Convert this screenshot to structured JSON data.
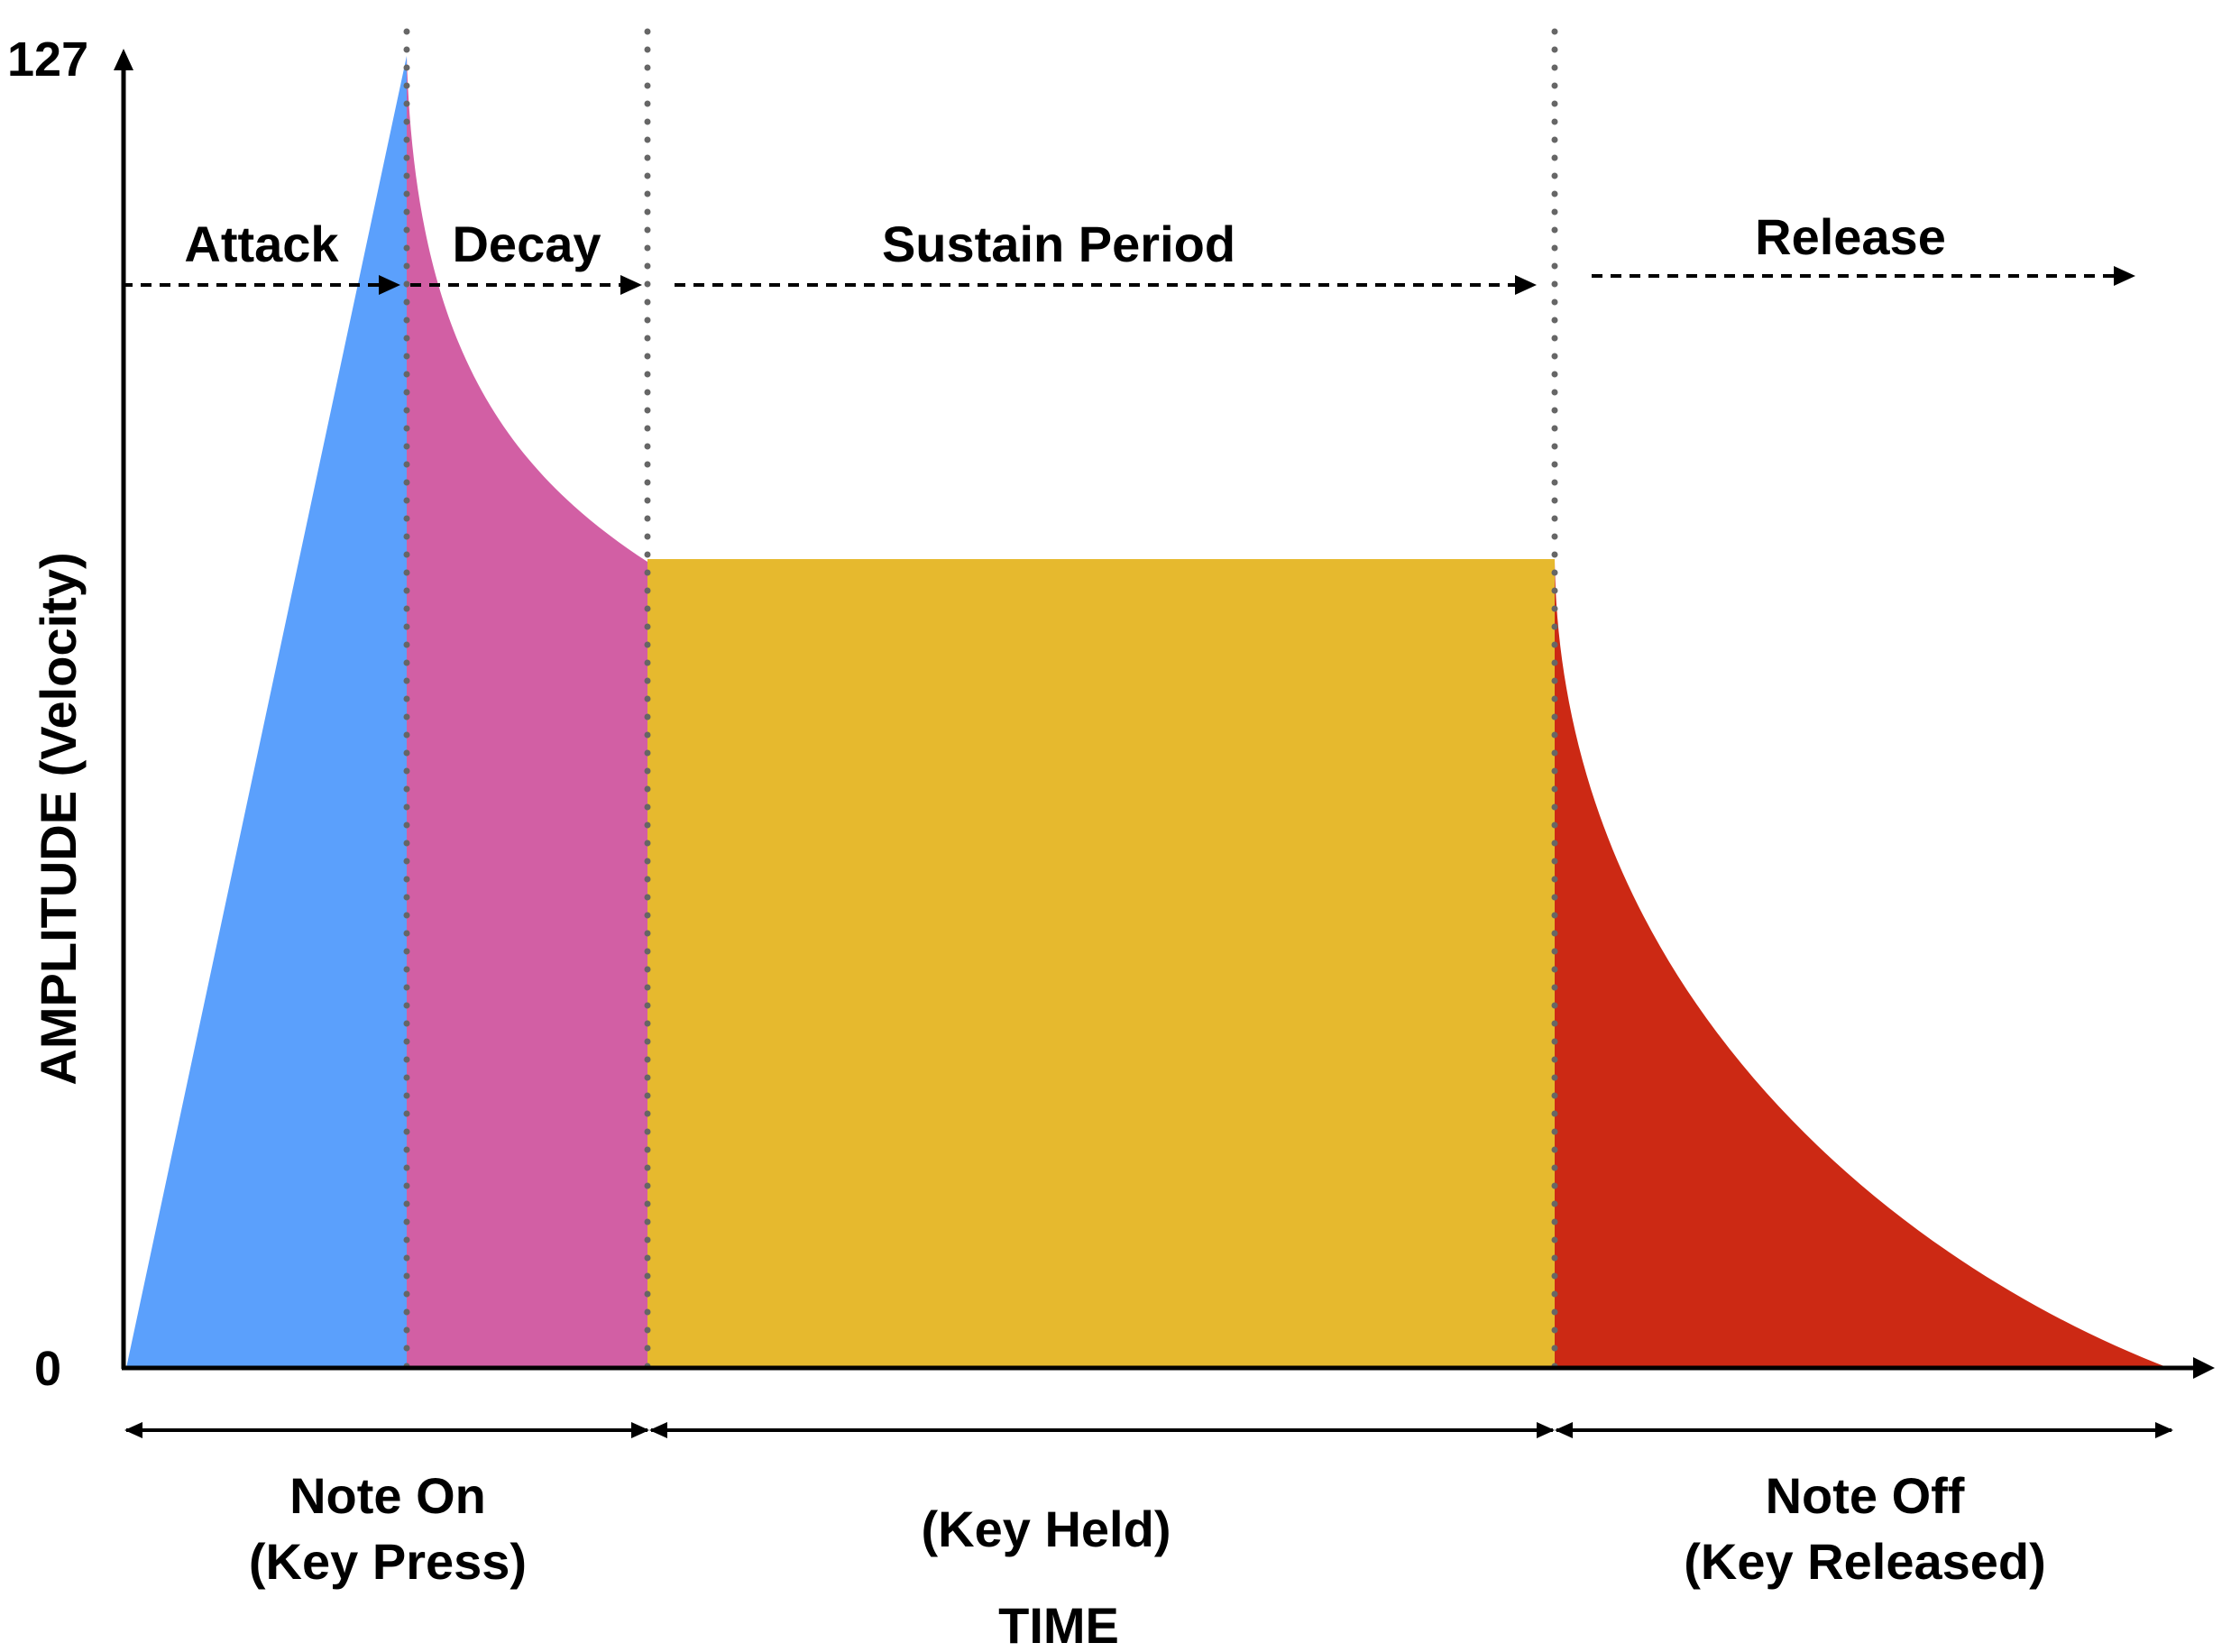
{
  "axes": {
    "y_label": "AMPLITUDE (Velocity)",
    "x_label": "TIME",
    "y_max_label": "127",
    "y_min_label": "0"
  },
  "phases": {
    "attack": "Attack",
    "decay": "Decay",
    "sustain": "Sustain Period",
    "release": "Release"
  },
  "events": {
    "note_on_line1": "Note On",
    "note_on_line2": "(Key Press)",
    "key_held": "(Key Held)",
    "note_off_line1": "Note Off",
    "note_off_line2": "(Key Released)"
  },
  "colors": {
    "attack": "#5BA0FC",
    "decay": "#D25FA4",
    "sustain": "#E6B92E",
    "release": "#CC2914",
    "guide": "#666666"
  }
}
